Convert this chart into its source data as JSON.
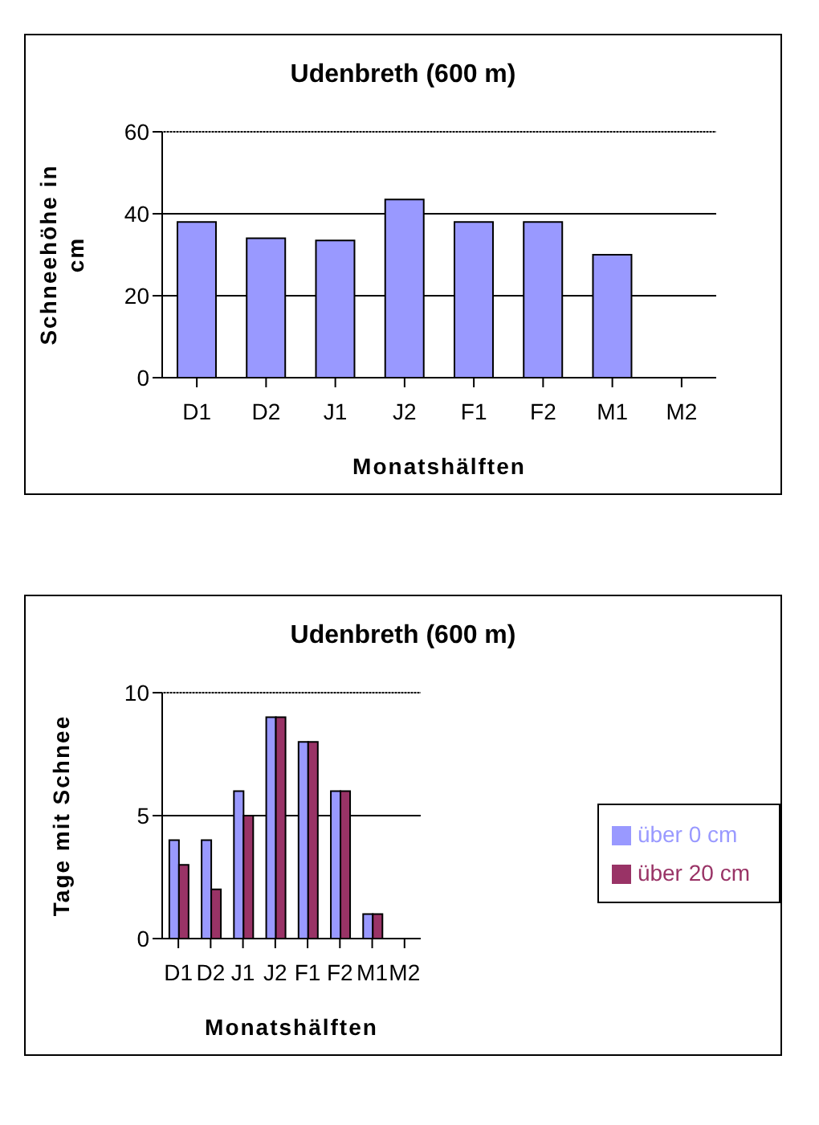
{
  "chart_data": [
    {
      "type": "bar",
      "title": "Udenbreth (600 m)",
      "xlabel": "Monatshälften",
      "ylabel": "Schneehöhe in cm",
      "categories": [
        "D1",
        "D2",
        "J1",
        "J2",
        "F1",
        "F2",
        "M1",
        "M2"
      ],
      "series": [
        {
          "color": "#9999ff",
          "values": [
            38,
            34,
            33.5,
            43.5,
            38,
            38,
            30,
            null
          ]
        }
      ],
      "ylim": [
        0,
        60
      ],
      "yticks": [
        0,
        20,
        40,
        60
      ],
      "grid": "y",
      "legend": false
    },
    {
      "type": "bar",
      "title": "Udenbreth (600 m)",
      "xlabel": "Monatshälften",
      "ylabel": "Tage mit Schnee",
      "categories": [
        "D1",
        "D2",
        "J1",
        "J2",
        "F1",
        "F2",
        "M1",
        "M2"
      ],
      "series": [
        {
          "name": "über 0 cm",
          "color": "#9999ff",
          "values": [
            4,
            4,
            6,
            9,
            8,
            6,
            1,
            null
          ]
        },
        {
          "name": "über 20 cm",
          "color": "#993366",
          "values": [
            3,
            2,
            5,
            9,
            8,
            6,
            1,
            null
          ]
        }
      ],
      "ylim": [
        0,
        10
      ],
      "yticks": [
        0,
        5,
        10
      ],
      "grid": "y",
      "legend": "right"
    }
  ]
}
